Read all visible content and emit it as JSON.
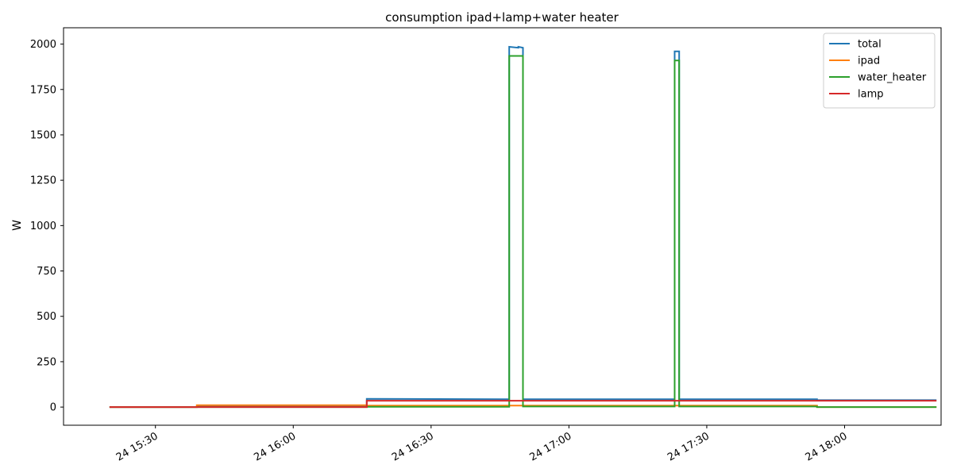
{
  "chart_data": {
    "type": "line",
    "title": "consumption ipad+lamp+water heater",
    "xlabel": "",
    "ylabel": "W",
    "x_ticks": [
      "24 15:30",
      "24 16:00",
      "24 16:30",
      "24 17:00",
      "24 17:30",
      "24 18:00"
    ],
    "x_tick_minutes": [
      930,
      960,
      990,
      1020,
      1050,
      1080
    ],
    "xlim_minutes": [
      910,
      1101
    ],
    "ylim": [
      -100,
      2090
    ],
    "y_ticks": [
      0,
      250,
      500,
      750,
      1000,
      1250,
      1500,
      1750,
      2000
    ],
    "legend_position": "top-right",
    "grid": false,
    "series": [
      {
        "name": "total",
        "color": "#1f77b4",
        "points": [
          [
            920,
            0
          ],
          [
            939,
            0
          ],
          [
            939,
            5
          ],
          [
            976,
            5
          ],
          [
            976,
            45
          ],
          [
            1007,
            43
          ],
          [
            1007,
            1985
          ],
          [
            1009,
            1980
          ],
          [
            1009,
            1985
          ],
          [
            1010,
            1980
          ],
          [
            1010,
            43
          ],
          [
            1043,
            43
          ],
          [
            1043,
            1960
          ],
          [
            1044,
            1960
          ],
          [
            1044,
            43
          ],
          [
            1074,
            43
          ],
          [
            1074,
            38
          ],
          [
            1100,
            38
          ]
        ]
      },
      {
        "name": "ipad",
        "color": "#ff7f0e",
        "points": [
          [
            920,
            0
          ],
          [
            939,
            0
          ],
          [
            939,
            10
          ],
          [
            976,
            10
          ],
          [
            976,
            8
          ],
          [
            1074,
            8
          ],
          [
            1074,
            0
          ],
          [
            1100,
            0
          ]
        ]
      },
      {
        "name": "water_heater",
        "color": "#2ca02c",
        "points": [
          [
            920,
            0
          ],
          [
            976,
            0
          ],
          [
            976,
            2
          ],
          [
            1007,
            2
          ],
          [
            1007,
            1935
          ],
          [
            1010,
            1935
          ],
          [
            1010,
            3
          ],
          [
            1043,
            3
          ],
          [
            1043,
            1910
          ],
          [
            1044,
            1910
          ],
          [
            1044,
            3
          ],
          [
            1074,
            3
          ],
          [
            1074,
            0
          ],
          [
            1100,
            0
          ]
        ]
      },
      {
        "name": "lamp",
        "color": "#d62728",
        "points": [
          [
            920,
            0
          ],
          [
            976,
            0
          ],
          [
            976,
            35
          ],
          [
            1100,
            35
          ]
        ]
      }
    ]
  }
}
